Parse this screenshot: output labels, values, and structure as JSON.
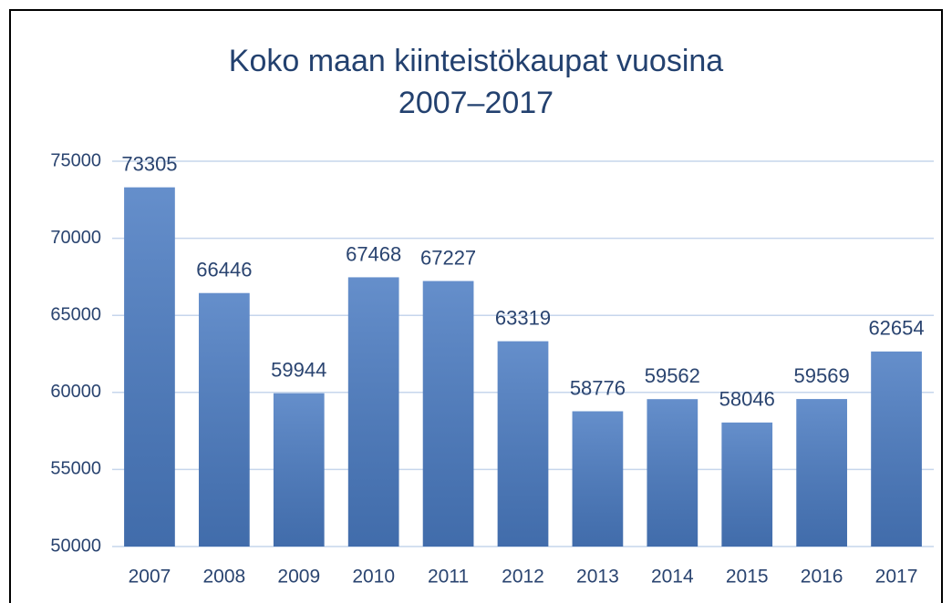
{
  "chart_data": {
    "type": "bar",
    "title": "Koko maan kiinteistökaupat vuosina 2007–2017",
    "categories": [
      "2007",
      "2008",
      "2009",
      "2010",
      "2011",
      "2012",
      "2013",
      "2014",
      "2015",
      "2016",
      "2017"
    ],
    "values": [
      73305,
      66446,
      59944,
      67468,
      67227,
      63319,
      58776,
      59562,
      58046,
      59569,
      62654
    ],
    "color": "#4a7bc2",
    "ylim": [
      50000,
      75000
    ],
    "yticks": [
      50000,
      55000,
      60000,
      65000,
      70000,
      75000
    ],
    "grid": true
  }
}
